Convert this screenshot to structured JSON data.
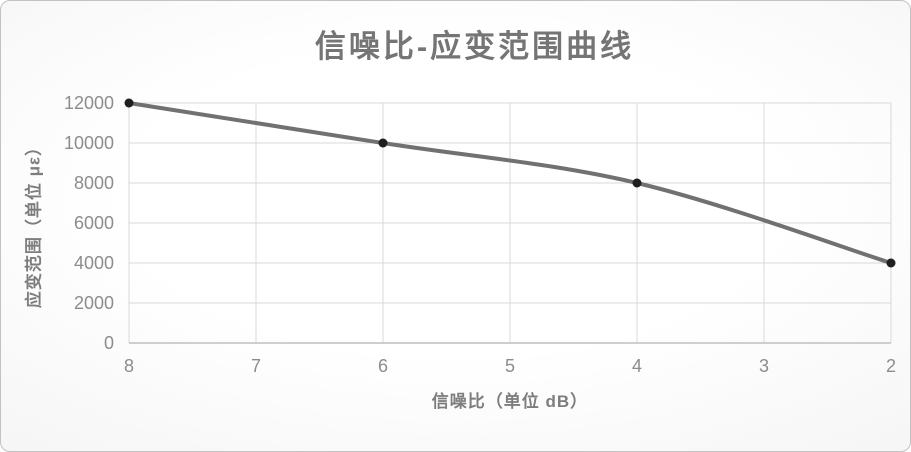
{
  "chart_data": {
    "type": "line",
    "title": "信噪比-应变范围曲线",
    "xlabel": "信噪比（单位 dB）",
    "ylabel": "应变范围（单位 με）",
    "x": [
      8,
      6,
      4,
      2
    ],
    "values": [
      12000,
      10000,
      8000,
      4000
    ],
    "x_ticks": [
      "8",
      "7",
      "6",
      "5",
      "4",
      "3",
      "2"
    ],
    "y_ticks": [
      "0",
      "2000",
      "4000",
      "6000",
      "8000",
      "10000",
      "12000"
    ],
    "xlim": [
      8,
      2
    ],
    "ylim": [
      0,
      12000
    ],
    "x_axis_reversed": true,
    "smooth": true,
    "grid": true,
    "legend_position": "none",
    "marker_shape": "circle",
    "colors": {
      "line": "#717171",
      "marker": "#1f1f1f",
      "gridline": "#d9d9d9",
      "axis_line": "#bfbfbf",
      "tick_label": "#8c8c8c",
      "title": "#757575",
      "axis_title": "#7d7d7d",
      "border": "#c2c2c2"
    }
  }
}
